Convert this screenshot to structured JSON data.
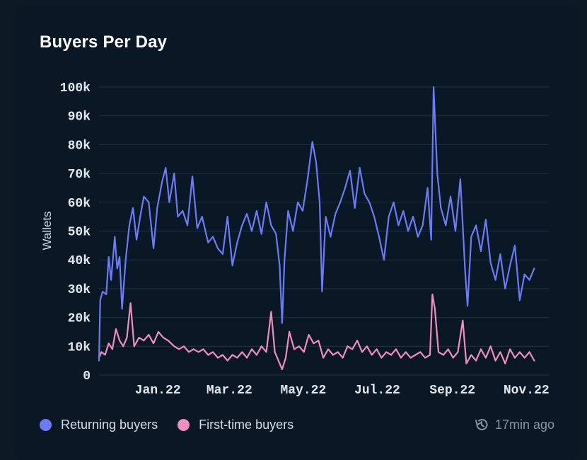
{
  "title": "Buyers Per Day",
  "updated": {
    "label": "17min ago",
    "icon": "history-icon"
  },
  "colors": {
    "background": "#0a1724",
    "grid": "#1f3344",
    "returning": "#6b7cf6",
    "first_time": "#f08fbf"
  },
  "chart_data": {
    "type": "line",
    "title": "Buyers Per Day",
    "ylabel": "Wallets",
    "xlabel": "",
    "ylim": [
      0,
      100000
    ],
    "x_range": [
      "2021-12-01",
      "2022-12-07"
    ],
    "y_ticks": [
      0,
      10000,
      20000,
      30000,
      40000,
      50000,
      60000,
      70000,
      80000,
      90000,
      100000
    ],
    "y_tick_labels": [
      "0",
      "10k",
      "20k",
      "30k",
      "40k",
      "50k",
      "60k",
      "70k",
      "80k",
      "90k",
      "100k"
    ],
    "x_ticks": [
      "2022-01-01",
      "2022-03-01",
      "2022-05-01",
      "2022-07-01",
      "2022-09-01",
      "2022-11-01"
    ],
    "x_tick_labels": [
      "Jan.22",
      "Mar.22",
      "May.22",
      "Jul.22",
      "Sep.22",
      "Nov.22"
    ],
    "grid": true,
    "legend": "bottom",
    "series": [
      {
        "name": "Returning buyers",
        "color": "#6b7cf6",
        "points": [
          [
            "2021-12-01",
            5000
          ],
          [
            "2021-12-02",
            26000
          ],
          [
            "2021-12-04",
            29000
          ],
          [
            "2021-12-07",
            28000
          ],
          [
            "2021-12-09",
            41000
          ],
          [
            "2021-12-11",
            33000
          ],
          [
            "2021-12-14",
            48000
          ],
          [
            "2021-12-16",
            37000
          ],
          [
            "2021-12-18",
            41000
          ],
          [
            "2021-12-20",
            23000
          ],
          [
            "2021-12-23",
            40000
          ],
          [
            "2021-12-26",
            52000
          ],
          [
            "2021-12-29",
            58000
          ],
          [
            "2022-01-01",
            47000
          ],
          [
            "2022-01-04",
            55000
          ],
          [
            "2022-01-07",
            62000
          ],
          [
            "2022-01-11",
            60000
          ],
          [
            "2022-01-15",
            44000
          ],
          [
            "2022-01-18",
            58000
          ],
          [
            "2022-01-22",
            67000
          ],
          [
            "2022-01-25",
            72000
          ],
          [
            "2022-01-28",
            60000
          ],
          [
            "2022-02-01",
            70000
          ],
          [
            "2022-02-04",
            55000
          ],
          [
            "2022-02-08",
            57000
          ],
          [
            "2022-02-12",
            52000
          ],
          [
            "2022-02-16",
            69000
          ],
          [
            "2022-02-20",
            51000
          ],
          [
            "2022-02-24",
            55000
          ],
          [
            "2022-03-01",
            46000
          ],
          [
            "2022-03-05",
            48000
          ],
          [
            "2022-03-09",
            44000
          ],
          [
            "2022-03-13",
            42000
          ],
          [
            "2022-03-17",
            55000
          ],
          [
            "2022-03-21",
            38000
          ],
          [
            "2022-03-25",
            46000
          ],
          [
            "2022-03-29",
            52000
          ],
          [
            "2022-04-02",
            56000
          ],
          [
            "2022-04-06",
            50000
          ],
          [
            "2022-04-10",
            57000
          ],
          [
            "2022-04-14",
            49000
          ],
          [
            "2022-04-18",
            60000
          ],
          [
            "2022-04-22",
            52000
          ],
          [
            "2022-04-26",
            49000
          ],
          [
            "2022-04-29",
            38000
          ],
          [
            "2022-05-01",
            18000
          ],
          [
            "2022-05-03",
            40000
          ],
          [
            "2022-05-06",
            57000
          ],
          [
            "2022-05-10",
            50000
          ],
          [
            "2022-05-14",
            60000
          ],
          [
            "2022-05-18",
            57000
          ],
          [
            "2022-05-22",
            68000
          ],
          [
            "2022-05-26",
            81000
          ],
          [
            "2022-05-29",
            74000
          ],
          [
            "2022-06-01",
            60000
          ],
          [
            "2022-06-03",
            29000
          ],
          [
            "2022-06-06",
            55000
          ],
          [
            "2022-06-10",
            48000
          ],
          [
            "2022-06-14",
            56000
          ],
          [
            "2022-06-18",
            60000
          ],
          [
            "2022-06-22",
            65000
          ],
          [
            "2022-06-26",
            71000
          ],
          [
            "2022-06-30",
            58000
          ],
          [
            "2022-07-04",
            72000
          ],
          [
            "2022-07-08",
            63000
          ],
          [
            "2022-07-12",
            60000
          ],
          [
            "2022-07-16",
            55000
          ],
          [
            "2022-07-20",
            48000
          ],
          [
            "2022-07-24",
            40000
          ],
          [
            "2022-07-28",
            55000
          ],
          [
            "2022-08-01",
            60000
          ],
          [
            "2022-08-05",
            52000
          ],
          [
            "2022-08-09",
            57000
          ],
          [
            "2022-08-13",
            50000
          ],
          [
            "2022-08-17",
            55000
          ],
          [
            "2022-08-21",
            48000
          ],
          [
            "2022-08-25",
            52000
          ],
          [
            "2022-08-29",
            65000
          ],
          [
            "2022-09-01",
            47000
          ],
          [
            "2022-09-03",
            100000
          ],
          [
            "2022-09-06",
            70000
          ],
          [
            "2022-09-09",
            58000
          ],
          [
            "2022-09-13",
            52000
          ],
          [
            "2022-09-17",
            62000
          ],
          [
            "2022-09-21",
            50000
          ],
          [
            "2022-09-25",
            68000
          ],
          [
            "2022-09-29",
            36000
          ],
          [
            "2022-10-01",
            24000
          ],
          [
            "2022-10-04",
            48000
          ],
          [
            "2022-10-08",
            52000
          ],
          [
            "2022-10-12",
            43000
          ],
          [
            "2022-10-16",
            54000
          ],
          [
            "2022-10-20",
            39000
          ],
          [
            "2022-10-24",
            33000
          ],
          [
            "2022-10-28",
            42000
          ],
          [
            "2022-11-01",
            30000
          ],
          [
            "2022-11-05",
            38000
          ],
          [
            "2022-11-09",
            45000
          ],
          [
            "2022-11-13",
            26000
          ],
          [
            "2022-11-17",
            35000
          ],
          [
            "2022-11-21",
            33000
          ],
          [
            "2022-11-25",
            37000
          ]
        ]
      },
      {
        "name": "First-time buyers",
        "color": "#f08fbf",
        "points": [
          [
            "2021-12-01",
            6000
          ],
          [
            "2021-12-03",
            8000
          ],
          [
            "2021-12-06",
            7000
          ],
          [
            "2021-12-09",
            11000
          ],
          [
            "2021-12-12",
            9000
          ],
          [
            "2021-12-15",
            16000
          ],
          [
            "2021-12-18",
            12000
          ],
          [
            "2021-12-21",
            10000
          ],
          [
            "2021-12-24",
            13000
          ],
          [
            "2021-12-27",
            25000
          ],
          [
            "2021-12-30",
            10000
          ],
          [
            "2022-01-03",
            13000
          ],
          [
            "2022-01-07",
            12000
          ],
          [
            "2022-01-11",
            14000
          ],
          [
            "2022-01-15",
            11000
          ],
          [
            "2022-01-19",
            15000
          ],
          [
            "2022-01-23",
            13000
          ],
          [
            "2022-01-27",
            12000
          ],
          [
            "2022-02-01",
            10000
          ],
          [
            "2022-02-05",
            9000
          ],
          [
            "2022-02-09",
            10000
          ],
          [
            "2022-02-13",
            8000
          ],
          [
            "2022-02-17",
            9000
          ],
          [
            "2022-02-21",
            8000
          ],
          [
            "2022-02-25",
            9000
          ],
          [
            "2022-03-01",
            7000
          ],
          [
            "2022-03-05",
            8000
          ],
          [
            "2022-03-09",
            6000
          ],
          [
            "2022-03-13",
            7000
          ],
          [
            "2022-03-17",
            5000
          ],
          [
            "2022-03-21",
            7000
          ],
          [
            "2022-03-25",
            6000
          ],
          [
            "2022-03-29",
            8000
          ],
          [
            "2022-04-02",
            6000
          ],
          [
            "2022-04-06",
            9000
          ],
          [
            "2022-04-10",
            7000
          ],
          [
            "2022-04-14",
            10000
          ],
          [
            "2022-04-18",
            8000
          ],
          [
            "2022-04-22",
            22000
          ],
          [
            "2022-04-25",
            8000
          ],
          [
            "2022-04-28",
            5000
          ],
          [
            "2022-05-01",
            2000
          ],
          [
            "2022-05-04",
            6000
          ],
          [
            "2022-05-07",
            15000
          ],
          [
            "2022-05-11",
            9000
          ],
          [
            "2022-05-15",
            10000
          ],
          [
            "2022-05-19",
            8000
          ],
          [
            "2022-05-23",
            14000
          ],
          [
            "2022-05-27",
            11000
          ],
          [
            "2022-05-31",
            12000
          ],
          [
            "2022-06-04",
            6000
          ],
          [
            "2022-06-08",
            9000
          ],
          [
            "2022-06-12",
            7000
          ],
          [
            "2022-06-16",
            8000
          ],
          [
            "2022-06-20",
            6000
          ],
          [
            "2022-06-24",
            10000
          ],
          [
            "2022-06-28",
            9000
          ],
          [
            "2022-07-02",
            12000
          ],
          [
            "2022-07-06",
            8000
          ],
          [
            "2022-07-10",
            10000
          ],
          [
            "2022-07-14",
            7000
          ],
          [
            "2022-07-18",
            9000
          ],
          [
            "2022-07-22",
            6000
          ],
          [
            "2022-07-26",
            8000
          ],
          [
            "2022-07-30",
            7000
          ],
          [
            "2022-08-03",
            9000
          ],
          [
            "2022-08-07",
            6000
          ],
          [
            "2022-08-11",
            8000
          ],
          [
            "2022-08-15",
            6000
          ],
          [
            "2022-08-19",
            7000
          ],
          [
            "2022-08-23",
            8000
          ],
          [
            "2022-08-27",
            6000
          ],
          [
            "2022-08-31",
            7000
          ],
          [
            "2022-09-02",
            28000
          ],
          [
            "2022-09-04",
            23000
          ],
          [
            "2022-09-07",
            8000
          ],
          [
            "2022-09-11",
            7000
          ],
          [
            "2022-09-15",
            9000
          ],
          [
            "2022-09-19",
            6000
          ],
          [
            "2022-09-23",
            8000
          ],
          [
            "2022-09-27",
            19000
          ],
          [
            "2022-09-30",
            4000
          ],
          [
            "2022-10-04",
            7000
          ],
          [
            "2022-10-08",
            5000
          ],
          [
            "2022-10-12",
            9000
          ],
          [
            "2022-10-16",
            6000
          ],
          [
            "2022-10-20",
            10000
          ],
          [
            "2022-10-24",
            5000
          ],
          [
            "2022-10-28",
            8000
          ],
          [
            "2022-11-01",
            4000
          ],
          [
            "2022-11-05",
            9000
          ],
          [
            "2022-11-09",
            6000
          ],
          [
            "2022-11-13",
            8000
          ],
          [
            "2022-11-17",
            6000
          ],
          [
            "2022-11-21",
            8000
          ],
          [
            "2022-11-25",
            5000
          ]
        ]
      }
    ]
  }
}
